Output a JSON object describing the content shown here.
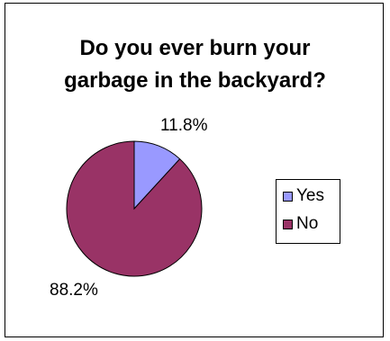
{
  "chart_data": {
    "type": "pie",
    "title_lines": [
      "Do you ever burn your",
      "garbage in the backyard?"
    ],
    "slices": [
      {
        "label": "Yes",
        "value": 11.8,
        "value_label": "11.8%",
        "color": "#9999ff"
      },
      {
        "label": "No",
        "value": 88.2,
        "value_label": "88.2%",
        "color": "#993366"
      }
    ],
    "legend": "right",
    "border_color": "#000000"
  }
}
